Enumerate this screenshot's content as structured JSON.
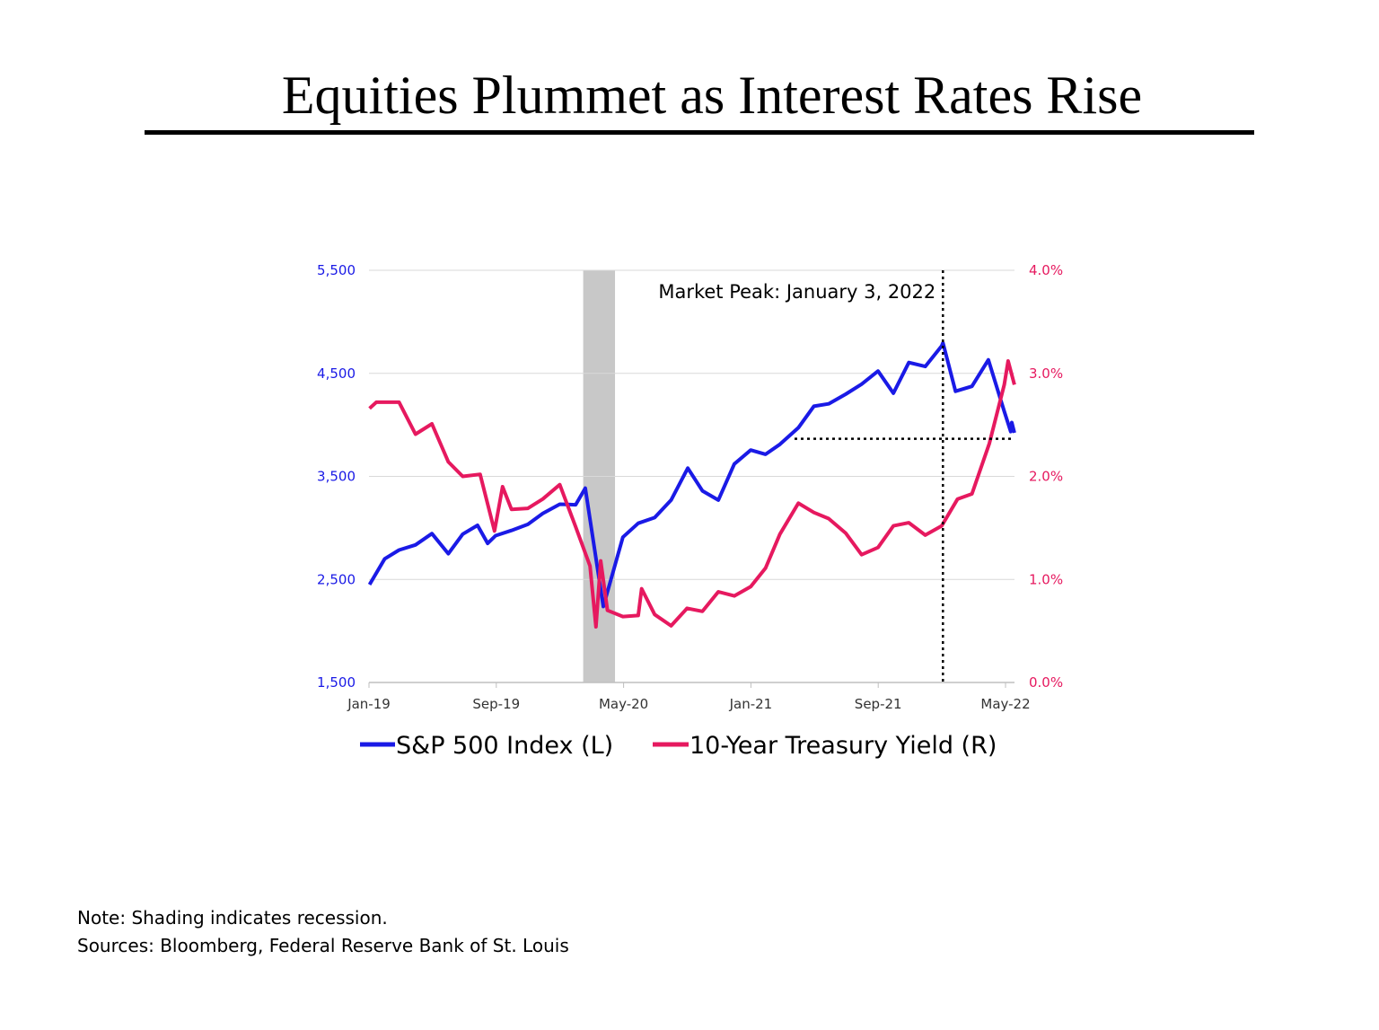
{
  "title": "Equities Plummet as Interest Rates Rise",
  "notes": [
    "Note: Shading indicates recession.",
    "Sources: Bloomberg, Federal Reserve Bank of St. Louis"
  ],
  "chart_data": {
    "type": "line",
    "title": "Equities Plummet as Interest Rates Rise",
    "x_ticks": [
      "Jan-19",
      "Sep-19",
      "May-20",
      "Jan-21",
      "Sep-21",
      "May-22"
    ],
    "x_tick_dates": [
      "2019-01-01",
      "2019-09-01",
      "2020-05-01",
      "2021-01-01",
      "2021-09-01",
      "2022-05-01"
    ],
    "y_left": {
      "range": [
        1500,
        5500
      ],
      "ticks": [
        "1,500",
        "2,500",
        "3,500",
        "4,500",
        "5,500"
      ],
      "color": "#1a1ae6"
    },
    "y_right": {
      "range": [
        0,
        4
      ],
      "ticks": [
        "0.0%",
        "1.0%",
        "2.0%",
        "3.0%",
        "4.0%"
      ],
      "color": "#e6195f"
    },
    "grid": true,
    "legend": "bottom",
    "recession_shading": {
      "start": "2020-02-15",
      "end": "2020-04-15",
      "color": "#c8c8c8"
    },
    "annotation": {
      "text": "Market Peak: January 3, 2022",
      "date": "2022-01-03",
      "sp500_level": 3865
    },
    "series": [
      {
        "name": "S&P 500 Index (L)",
        "axis": "left",
        "color": "#1a1ae6",
        "points": [
          [
            "2019-01-02",
            2450
          ],
          [
            "2019-01-31",
            2700
          ],
          [
            "2019-02-28",
            2785
          ],
          [
            "2019-03-29",
            2835
          ],
          [
            "2019-04-30",
            2945
          ],
          [
            "2019-05-31",
            2750
          ],
          [
            "2019-06-28",
            2940
          ],
          [
            "2019-07-26",
            3025
          ],
          [
            "2019-08-15",
            2850
          ],
          [
            "2019-08-30",
            2925
          ],
          [
            "2019-09-30",
            2975
          ],
          [
            "2019-10-31",
            3035
          ],
          [
            "2019-11-29",
            3140
          ],
          [
            "2019-12-31",
            3230
          ],
          [
            "2020-01-31",
            3225
          ],
          [
            "2020-02-19",
            3386
          ],
          [
            "2020-03-23",
            2237
          ],
          [
            "2020-04-30",
            2910
          ],
          [
            "2020-05-29",
            3045
          ],
          [
            "2020-06-30",
            3100
          ],
          [
            "2020-07-31",
            3270
          ],
          [
            "2020-09-02",
            3580
          ],
          [
            "2020-09-30",
            3360
          ],
          [
            "2020-10-30",
            3270
          ],
          [
            "2020-11-30",
            3620
          ],
          [
            "2020-12-31",
            3755
          ],
          [
            "2021-01-29",
            3714
          ],
          [
            "2021-02-26",
            3811
          ],
          [
            "2021-03-31",
            3972
          ],
          [
            "2021-04-30",
            4181
          ],
          [
            "2021-05-28",
            4204
          ],
          [
            "2021-06-30",
            4297
          ],
          [
            "2021-07-30",
            4395
          ],
          [
            "2021-08-31",
            4522
          ],
          [
            "2021-09-30",
            4307
          ],
          [
            "2021-10-29",
            4605
          ],
          [
            "2021-11-30",
            4567
          ],
          [
            "2021-12-31",
            4766
          ],
          [
            "2022-01-03",
            4796
          ],
          [
            "2022-01-27",
            4326
          ],
          [
            "2022-02-28",
            4374
          ],
          [
            "2022-03-29",
            4631
          ],
          [
            "2022-04-29",
            4131
          ],
          [
            "2022-05-11",
            3935
          ],
          [
            "2022-05-13",
            4023
          ],
          [
            "2022-05-18",
            3923
          ]
        ]
      },
      {
        "name": "10-Year Treasury Yield (R)",
        "axis": "right",
        "color": "#e6195f",
        "points": [
          [
            "2019-01-02",
            2.66
          ],
          [
            "2019-01-15",
            2.72
          ],
          [
            "2019-02-28",
            2.72
          ],
          [
            "2019-03-29",
            2.41
          ],
          [
            "2019-04-30",
            2.51
          ],
          [
            "2019-05-31",
            2.14
          ],
          [
            "2019-06-28",
            2.0
          ],
          [
            "2019-07-31",
            2.02
          ],
          [
            "2019-08-28",
            1.47
          ],
          [
            "2019-09-13",
            1.9
          ],
          [
            "2019-09-30",
            1.68
          ],
          [
            "2019-10-31",
            1.69
          ],
          [
            "2019-11-29",
            1.78
          ],
          [
            "2019-12-31",
            1.92
          ],
          [
            "2020-01-31",
            1.51
          ],
          [
            "2020-02-28",
            1.13
          ],
          [
            "2020-03-09",
            0.54
          ],
          [
            "2020-03-18",
            1.18
          ],
          [
            "2020-03-31",
            0.7
          ],
          [
            "2020-04-30",
            0.64
          ],
          [
            "2020-05-29",
            0.65
          ],
          [
            "2020-06-05",
            0.91
          ],
          [
            "2020-06-30",
            0.66
          ],
          [
            "2020-07-31",
            0.55
          ],
          [
            "2020-08-31",
            0.72
          ],
          [
            "2020-09-30",
            0.69
          ],
          [
            "2020-10-30",
            0.88
          ],
          [
            "2020-11-30",
            0.84
          ],
          [
            "2020-12-31",
            0.93
          ],
          [
            "2021-01-29",
            1.11
          ],
          [
            "2021-02-26",
            1.44
          ],
          [
            "2021-03-31",
            1.74
          ],
          [
            "2021-04-30",
            1.65
          ],
          [
            "2021-05-28",
            1.59
          ],
          [
            "2021-06-30",
            1.45
          ],
          [
            "2021-07-30",
            1.24
          ],
          [
            "2021-08-31",
            1.31
          ],
          [
            "2021-09-30",
            1.52
          ],
          [
            "2021-10-29",
            1.55
          ],
          [
            "2021-11-30",
            1.43
          ],
          [
            "2021-12-31",
            1.52
          ],
          [
            "2022-01-31",
            1.78
          ],
          [
            "2022-02-28",
            1.83
          ],
          [
            "2022-03-31",
            2.32
          ],
          [
            "2022-04-29",
            2.89
          ],
          [
            "2022-05-06",
            3.12
          ],
          [
            "2022-05-18",
            2.89
          ]
        ]
      }
    ]
  }
}
